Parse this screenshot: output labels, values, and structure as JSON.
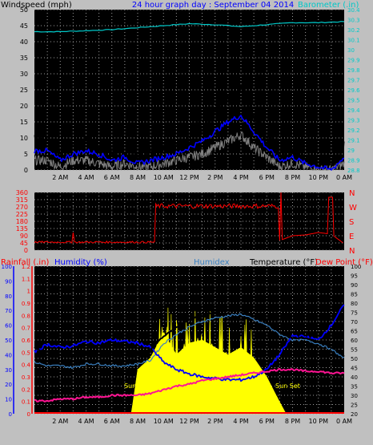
{
  "header": {
    "left_title": "Windspeed (mph)",
    "center_title": "24 hour graph day : September 04 2014",
    "right_title": "Barometer (.in)"
  },
  "colors": {
    "background": "#c0c0c0",
    "plot_bg": "#000000",
    "windspeed_gust": "#000000",
    "windspeed_avg": "#0000ff",
    "windspeed_min": "#808080",
    "barometer": "#00c8c8",
    "direction": "#ff0000",
    "temperature": "#000000",
    "humidex": "#3a7fbf",
    "humidity": "#0000ff",
    "dewpoint": "#ff1493",
    "solar": "#ffff00",
    "rain": "#ff0000"
  },
  "x_ticks": [
    "2 AM",
    "4 AM",
    "6 AM",
    "8 AM",
    "10 AM",
    "12 PM",
    "2 PM",
    "4 PM",
    "6 PM",
    "8 PM",
    "10 PM",
    "0 AM"
  ],
  "wind_panel": {
    "left_ticks": [
      "50",
      "45",
      "40",
      "35",
      "30",
      "25",
      "20",
      "15",
      "10",
      "5",
      "0"
    ],
    "right_ticks": [
      "30.4",
      "30.3",
      "30.2",
      "30.1",
      "30",
      "29.9",
      "29.8",
      "29.7",
      "29.6",
      "29.5",
      "29.4",
      "29.3",
      "29.2",
      "29.1",
      "29",
      "28.9",
      "28.8"
    ]
  },
  "dir_panel": {
    "left_ticks": [
      "360",
      "315",
      "270",
      "225",
      "180",
      "135",
      "90",
      "45",
      "0"
    ],
    "right_letters": [
      "N",
      "W",
      "S",
      "E",
      "N"
    ]
  },
  "temp_panel": {
    "label_rain": "Rainfall (.in)",
    "label_humidity": "Humidity (%)",
    "label_humidex": "Humidex",
    "label_temp": "Temperature (°F)",
    "label_dew": "Dew Point (°F)",
    "rain_ticks": [
      "1.2",
      "1.1",
      "1",
      "0.9",
      "0.8",
      "0.7",
      "0.6",
      "0.5",
      "0.4",
      "0.3",
      "0.2",
      "0.1",
      "0"
    ],
    "hum_ticks": [
      "100",
      "90",
      "80",
      "70",
      "60",
      "50",
      "40",
      "30",
      "20",
      "10",
      "0"
    ],
    "temp_ticks": [
      "100",
      "95",
      "90",
      "85",
      "80",
      "75",
      "70",
      "65",
      "60",
      "55",
      "50",
      "45",
      "40",
      "35",
      "30",
      "25",
      "20"
    ],
    "sun_rise": "Sun Rise",
    "sun_set": "Sun Set"
  },
  "chart_data": [
    {
      "type": "line",
      "title": "Windspeed (mph)",
      "ylim": [
        0,
        50
      ],
      "x_hours": [
        0,
        1,
        2,
        3,
        4,
        5,
        6,
        7,
        8,
        9,
        10,
        11,
        12,
        13,
        14,
        15,
        16,
        17,
        18,
        19,
        20,
        21,
        22,
        23,
        24
      ],
      "series": [
        {
          "name": "gust",
          "values": [
            9,
            9,
            6,
            8,
            8,
            7,
            6,
            6,
            4,
            5,
            6,
            8,
            10,
            14,
            18,
            22,
            25,
            17,
            10,
            5,
            6,
            3,
            2,
            1,
            7
          ]
        },
        {
          "name": "average",
          "values": [
            6,
            6,
            3,
            5,
            6,
            5,
            3,
            4,
            2,
            3,
            4,
            5,
            7,
            9,
            12,
            15,
            17,
            12,
            7,
            3,
            4,
            2,
            1,
            0,
            4
          ]
        },
        {
          "name": "minimum",
          "values": [
            3,
            3,
            1,
            3,
            3,
            2,
            1,
            2,
            1,
            1,
            2,
            3,
            4,
            5,
            7,
            9,
            11,
            7,
            4,
            1,
            2,
            1,
            0,
            0,
            2
          ]
        }
      ]
    },
    {
      "type": "line",
      "title": "Barometer (.in)",
      "ylim": [
        28.8,
        30.4
      ],
      "x_hours": [
        0,
        2,
        4,
        6,
        8,
        10,
        12,
        14,
        16,
        18,
        20,
        22,
        24
      ],
      "series": [
        {
          "name": "barometer",
          "values": [
            30.18,
            30.18,
            30.19,
            30.2,
            30.22,
            30.24,
            30.26,
            30.25,
            30.23,
            30.25,
            30.27,
            30.27,
            30.28
          ]
        }
      ]
    },
    {
      "type": "line",
      "title": "Wind direction",
      "ylim": [
        0,
        360
      ],
      "x_hours": [
        0,
        1,
        2,
        3,
        4,
        5,
        6,
        7,
        8,
        9,
        10,
        11,
        12,
        13,
        14,
        15,
        16,
        17,
        18,
        19,
        20,
        21,
        22,
        23,
        24
      ],
      "series": [
        {
          "name": "direction",
          "values": [
            50,
            45,
            55,
            50,
            50,
            45,
            50,
            45,
            50,
            50,
            280,
            270,
            270,
            275,
            275,
            270,
            275,
            280,
            270,
            60,
            90,
            95,
            110,
            100,
            40
          ]
        }
      ]
    },
    {
      "type": "line",
      "title": "Temperature",
      "ylim": [
        20,
        100
      ],
      "x_hours": [
        0,
        1,
        2,
        3,
        4,
        5,
        6,
        7,
        8,
        9,
        10,
        11,
        12,
        13,
        14,
        15,
        16,
        17,
        18,
        19,
        20,
        21,
        22,
        23,
        24
      ],
      "series": [
        {
          "name": "Temperature (°F)",
          "values": [
            56,
            52,
            52,
            51,
            53,
            54,
            53,
            52,
            53,
            55,
            62,
            67,
            71,
            74,
            75,
            76,
            76,
            73,
            70,
            64,
            61,
            61,
            59,
            56,
            51
          ]
        },
        {
          "name": "Humidex",
          "values": [
            48,
            46,
            46,
            45,
            47,
            47,
            46,
            46,
            47,
            49,
            58,
            63,
            67,
            70,
            72,
            73,
            74,
            71,
            68,
            63,
            60,
            60,
            58,
            55,
            50
          ]
        },
        {
          "name": "Dew Point (°F)",
          "values": [
            27,
            27,
            28,
            28,
            29,
            29,
            30,
            30,
            30,
            31,
            33,
            35,
            36,
            38,
            39,
            40,
            41,
            42,
            43,
            44,
            44,
            43,
            43,
            42,
            42
          ]
        }
      ]
    },
    {
      "type": "line",
      "title": "Humidity (%)",
      "ylim": [
        0,
        100
      ],
      "x_hours": [
        0,
        1,
        2,
        3,
        4,
        5,
        6,
        7,
        8,
        9,
        10,
        11,
        12,
        13,
        14,
        15,
        16,
        17,
        18,
        19,
        20,
        21,
        22,
        23,
        24
      ],
      "series": [
        {
          "name": "Humidity (%)",
          "values": [
            42,
            47,
            45,
            46,
            49,
            48,
            50,
            49,
            48,
            45,
            35,
            30,
            27,
            25,
            24,
            23,
            23,
            25,
            30,
            40,
            53,
            52,
            50,
            60,
            74
          ]
        }
      ]
    },
    {
      "type": "area",
      "title": "Solar",
      "ylim": [
        0,
        100
      ],
      "x_hours": [
        7.5,
        8,
        9,
        10,
        11,
        12,
        13,
        14,
        15,
        16,
        17,
        18,
        19,
        19.5
      ],
      "series": [
        {
          "name": "solar",
          "values": [
            0,
            30,
            38,
            55,
            40,
            48,
            50,
            45,
            40,
            45,
            38,
            25,
            8,
            0
          ]
        }
      ]
    }
  ]
}
